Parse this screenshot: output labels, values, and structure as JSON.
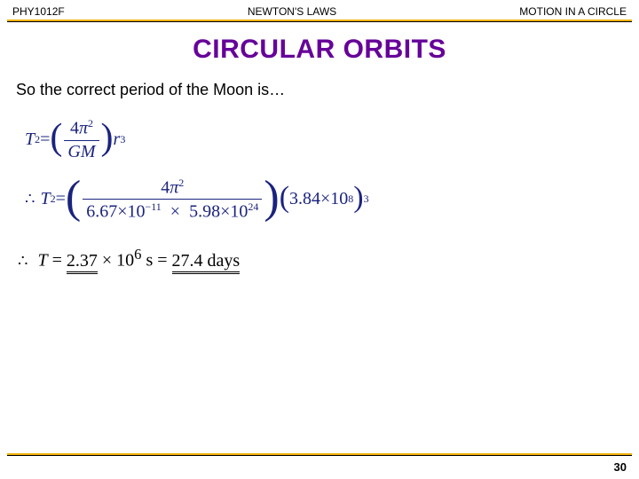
{
  "header": {
    "left": "PHY1012F",
    "center": "NEWTON'S LAWS",
    "right": "MOTION IN A CIRCLE"
  },
  "title": "CIRCULAR ORBITS",
  "intro": "So the correct period of the Moon is…",
  "eq1": {
    "lhs_base": "T",
    "lhs_exp": "2",
    "eq": " = ",
    "num_coeff": "4",
    "num_sym": "π",
    "num_exp": "2",
    "den_a": "G",
    "den_b": "M",
    "tail_base": "r",
    "tail_exp": "3"
  },
  "eq2": {
    "therefore": "∴",
    "lhs_base": "T",
    "lhs_exp": "2",
    "eq": " = ",
    "num_coeff": "4",
    "num_sym": "π",
    "num_exp": "2",
    "den_a": "6.67",
    "den_a_exp": "−11",
    "den_b": "5.98",
    "den_b_exp": "24",
    "right_a": "3.84",
    "right_a_exp": "8",
    "right_outer_exp": "3",
    "times": "×10"
  },
  "result": {
    "therefore": "∴",
    "T": "T",
    "eq": " = ",
    "val1": "2.37",
    "times": " × 10",
    "exp": "6",
    "unit": " s = ",
    "val2": "27.4 days"
  },
  "page_number": "30",
  "colors": {
    "title": "#660099",
    "equation": "#1a237e",
    "rule": "#f0b000"
  }
}
